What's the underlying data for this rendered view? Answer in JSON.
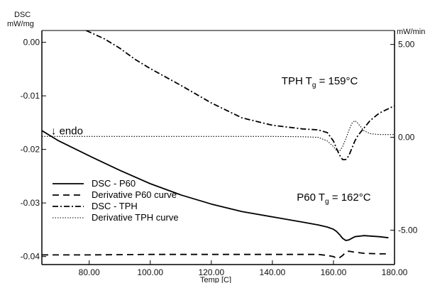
{
  "chart_data": {
    "type": "line",
    "left_axis": {
      "title_line1": "DSC",
      "title_line2": "mW/mg",
      "ylim": [
        -0.0415,
        0.0022
      ],
      "ticks": [
        0.0,
        -0.01,
        -0.02,
        -0.03,
        -0.04
      ],
      "tick_labels": [
        "0.00",
        "-0.01",
        "-0.02",
        "-0.03",
        "-0.04"
      ]
    },
    "right_axis": {
      "title": "mW/min",
      "ylim": [
        -6.85,
        5.75
      ],
      "ticks": [
        5.0,
        0.0,
        -5.0
      ],
      "tick_labels": [
        "5.00",
        "0.00",
        "-5.00"
      ]
    },
    "x_axis": {
      "title": "Temp [C]",
      "xlim": [
        64.5,
        180
      ],
      "ticks": [
        80,
        100,
        120,
        140,
        160,
        180
      ],
      "tick_labels": [
        "80.00",
        "100.00",
        "120.00",
        "140.00",
        "160.00",
        "180.00"
      ]
    },
    "series": [
      {
        "name": "DSC - P60",
        "axis": "left",
        "dash": "",
        "width": 1.8,
        "x": [
          64.5,
          70,
          80,
          90,
          100,
          110,
          120,
          130,
          140,
          150,
          155,
          158,
          160,
          161,
          162,
          163,
          164,
          165,
          167,
          170,
          175,
          178
        ],
        "y": [
          -0.0165,
          -0.0184,
          -0.0212,
          -0.0239,
          -0.0264,
          -0.0285,
          -0.0302,
          -0.0316,
          -0.0326,
          -0.0336,
          -0.0341,
          -0.0345,
          -0.0349,
          -0.0353,
          -0.0359,
          -0.0366,
          -0.037,
          -0.0369,
          -0.0363,
          -0.0361,
          -0.0363,
          -0.0365
        ]
      },
      {
        "name": "Derivative P60 curve",
        "axis": "left",
        "dash": "9,6",
        "width": 1.8,
        "x": [
          64.5,
          80,
          100,
          120,
          140,
          155,
          158,
          160,
          161,
          162,
          163,
          164,
          165,
          167,
          170,
          175,
          178
        ],
        "y": [
          -0.0397,
          -0.0397,
          -0.0396,
          -0.0396,
          -0.0396,
          -0.0396,
          -0.0398,
          -0.04,
          -0.0403,
          -0.0402,
          -0.0398,
          -0.0392,
          -0.039,
          -0.0392,
          -0.0394,
          -0.0395,
          -0.0395
        ]
      },
      {
        "name": "DSC - TPH",
        "axis": "right",
        "dash": "8,3,2,3",
        "width": 1.8,
        "x": [
          79,
          85,
          90,
          95,
          100,
          110,
          120,
          130,
          140,
          150,
          155,
          158,
          160,
          161,
          162,
          163,
          164,
          165,
          166,
          167,
          168,
          170,
          172,
          175,
          180
        ],
        "y": [
          5.75,
          5.3,
          4.8,
          4.2,
          3.7,
          2.8,
          1.85,
          1.05,
          0.65,
          0.45,
          0.4,
          0.25,
          -0.2,
          -0.6,
          -0.95,
          -1.2,
          -1.2,
          -1.0,
          -0.6,
          -0.2,
          0.1,
          0.5,
          0.9,
          1.3,
          1.7
        ]
      },
      {
        "name": "Derivative TPH curve",
        "axis": "right",
        "dash": "1.5,2",
        "width": 1.1,
        "x": [
          64.5,
          80,
          100,
          120,
          140,
          150,
          155,
          158,
          160,
          161,
          162,
          163,
          164,
          165,
          166,
          167,
          168,
          170,
          172,
          175,
          180
        ],
        "y": [
          0.05,
          0.05,
          0.05,
          0.05,
          0.05,
          0.03,
          0.0,
          -0.2,
          -0.5,
          -0.7,
          -0.75,
          -0.5,
          -0.1,
          0.35,
          0.75,
          0.9,
          0.75,
          0.35,
          0.2,
          0.15,
          0.15
        ]
      }
    ],
    "annotations": [
      {
        "main": "TPH T",
        "sub": "g",
        "rest": " = 159°C",
        "x": 143,
        "axis": "right",
        "y": 2.85
      },
      {
        "main": "P60 T",
        "sub": "g",
        "rest": " = 162°C",
        "x": 148,
        "axis": "left",
        "y": -0.0296
      },
      {
        "main": "↓ endo",
        "sub": "",
        "rest": "",
        "x": 67.5,
        "axis": "left",
        "y": -0.0172
      }
    ],
    "legend_position": "lower-left",
    "grid": false
  }
}
